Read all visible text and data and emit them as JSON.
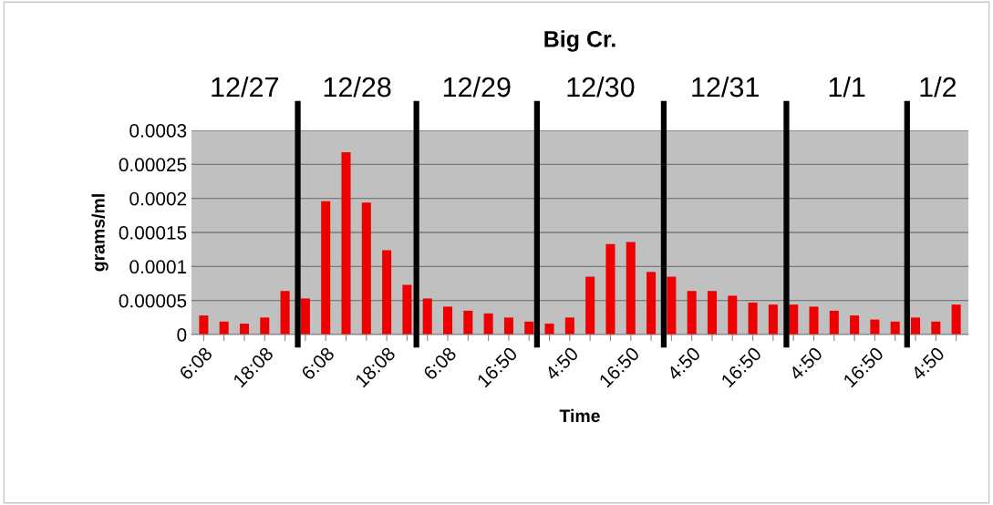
{
  "chart_data": {
    "type": "bar",
    "title": "Big Cr.",
    "xlabel": "Time",
    "ylabel": "grams/ml",
    "categories": [
      "6:08",
      null,
      null,
      "18:08",
      null,
      null,
      "6:08",
      null,
      null,
      "18:08",
      null,
      null,
      "6:08",
      null,
      null,
      "16:50",
      null,
      null,
      "4:50",
      null,
      null,
      "16:50",
      null,
      null,
      "4:50",
      null,
      null,
      "16:50",
      null,
      null,
      "4:50",
      null,
      null,
      "16:50",
      null,
      null,
      "4:50",
      null
    ],
    "values": [
      2.8e-05,
      1.9e-05,
      1.6e-05,
      2.5e-05,
      6.4e-05,
      5.3e-05,
      0.000196,
      0.000268,
      0.000194,
      0.000124,
      7.3e-05,
      5.3e-05,
      4.1e-05,
      3.5e-05,
      3.1e-05,
      2.5e-05,
      1.9e-05,
      1.6e-05,
      2.5e-05,
      8.5e-05,
      0.000133,
      0.000136,
      9.2e-05,
      8.5e-05,
      6.4e-05,
      6.4e-05,
      5.7e-05,
      4.7e-05,
      4.4e-05,
      4.4e-05,
      4.1e-05,
      3.5e-05,
      2.8e-05,
      2.2e-05,
      1.9e-05,
      2.5e-05,
      1.9e-05,
      4.4e-05
    ],
    "color": "#ee0000",
    "ylim": [
      0,
      0.0003
    ],
    "yticks": [
      0,
      {
        "value": 5e-05,
        "label": "0.00005"
      },
      {
        "value": 0.0001,
        "label": "0.0001"
      },
      {
        "value": 0.00015,
        "label": "0.00015"
      },
      {
        "value": 0.0002,
        "label": "0.0002"
      },
      {
        "value": 0.00025,
        "label": "0.00025"
      },
      {
        "value": 0.0003,
        "label": "0.0003"
      }
    ],
    "grid": "y",
    "annotations": [
      "12/27",
      "12/28",
      "12/29",
      "12/30",
      "12/31",
      "1/1",
      "1/2"
    ]
  }
}
